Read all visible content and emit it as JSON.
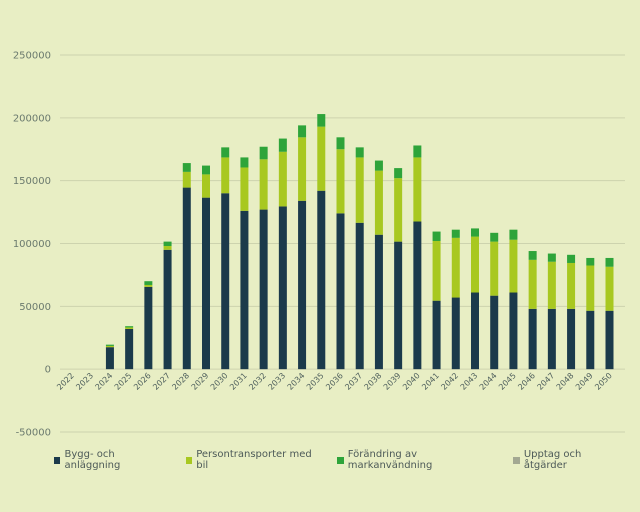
{
  "chart_data": {
    "type": "bar",
    "stacked": true,
    "title": "",
    "xlabel": "",
    "ylabel": "",
    "ylim": [
      -50000,
      250000
    ],
    "yticks": [
      250000,
      200000,
      150000,
      100000,
      50000,
      0,
      -50000
    ],
    "ytick_labels": [
      "250000",
      "200000",
      "150000",
      "100000",
      "50000",
      "0",
      "-50000"
    ],
    "grid": true,
    "legend_position": "bottom",
    "categories": [
      "2022",
      "2023",
      "2024",
      "2025",
      "2026",
      "2027",
      "2028",
      "2029",
      "2030",
      "2031",
      "2032",
      "2033",
      "2034",
      "2035",
      "2036",
      "2037",
      "2038",
      "2039",
      "2040",
      "2041",
      "2042",
      "2043",
      "2044",
      "2045",
      "2046",
      "2047",
      "2048",
      "2049",
      "2050"
    ],
    "series": [
      {
        "name": "Bygg- och anläggning",
        "color": "#1b3a4b",
        "values": [
          0,
          0,
          17500,
          32000,
          65500,
          95000,
          144500,
          136500,
          140000,
          126000,
          127000,
          129500,
          134000,
          142000,
          124000,
          116500,
          107000,
          101500,
          117500,
          54500,
          57000,
          61000,
          58500,
          61000,
          48000,
          48000,
          48000,
          46500,
          46500
        ]
      },
      {
        "name": "Persontransporter med bil",
        "color": "#a8c820",
        "values": [
          0,
          0,
          1000,
          1200,
          1500,
          3000,
          12500,
          18500,
          28500,
          34500,
          40000,
          43500,
          50500,
          51000,
          51000,
          52000,
          51000,
          50500,
          51000,
          47500,
          47500,
          44500,
          43000,
          42000,
          39000,
          37500,
          36500,
          36000,
          35000
        ]
      },
      {
        "name": "Förändring av markanvändning",
        "color": "#2ea43a",
        "values": [
          0,
          0,
          1000,
          1000,
          3000,
          3500,
          7000,
          7000,
          8000,
          8000,
          10000,
          10500,
          9500,
          10000,
          9500,
          8000,
          8000,
          8000,
          9500,
          7500,
          6500,
          6500,
          7000,
          8000,
          7000,
          6500,
          6500,
          6000,
          7000
        ]
      },
      {
        "name": "Upptag och åtgärder",
        "color": "#a3a892",
        "values": [
          0,
          0,
          0,
          0,
          0,
          0,
          0,
          0,
          0,
          0,
          0,
          0,
          0,
          0,
          0,
          0,
          0,
          0,
          0,
          0,
          0,
          0,
          0,
          0,
          0,
          0,
          0,
          0,
          0
        ]
      }
    ]
  }
}
